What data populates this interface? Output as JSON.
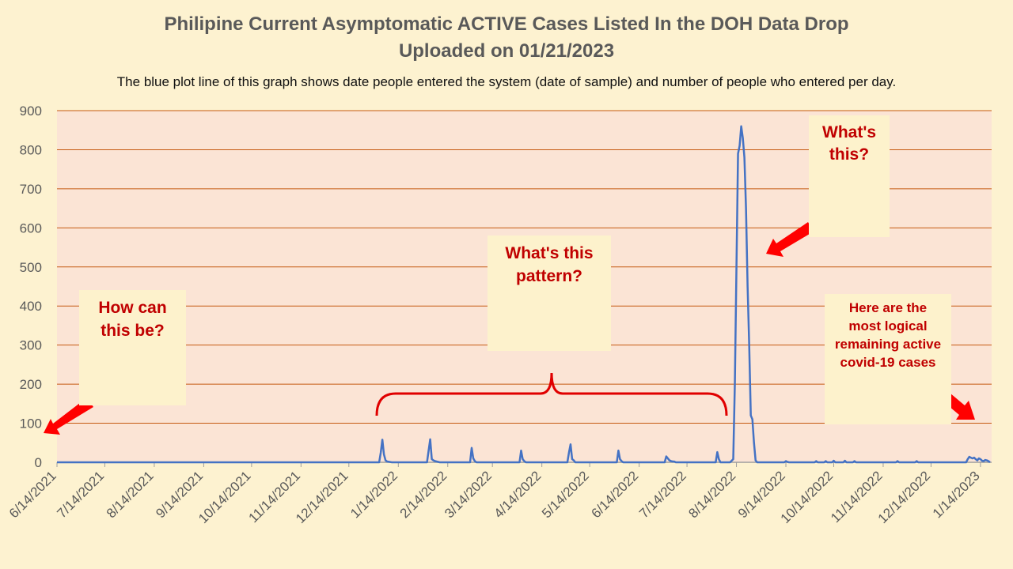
{
  "chart_data": {
    "type": "line",
    "title": "Philipine Current Asymptomatic ACTIVE Cases Listed In the DOH Data Drop",
    "title_line2": "Uploaded on 01/21/2023",
    "subtitle": "The blue plot line of this graph shows date people entered the system (date of sample) and number of people who entered per day.",
    "xlabel": "",
    "ylabel": "",
    "xlim": [
      "2021-06-14",
      "2023-01-21"
    ],
    "ylim": [
      0,
      900
    ],
    "yticks": [
      0,
      100,
      200,
      300,
      400,
      500,
      600,
      700,
      800,
      900
    ],
    "xtick_labels": [
      "6/14/2021",
      "7/14/2021",
      "8/14/2021",
      "9/14/2021",
      "10/14/2021",
      "11/14/2021",
      "12/14/2021",
      "1/14/2022",
      "2/14/2022",
      "3/14/2022",
      "4/14/2022",
      "5/14/2022",
      "6/14/2022",
      "7/14/2022",
      "8/14/2022",
      "9/14/2022",
      "10/14/2022",
      "11/14/2022",
      "12/14/2022",
      "1/14/2023"
    ],
    "xtick_dates": [
      "2021-06-14",
      "2021-07-14",
      "2021-08-14",
      "2021-09-14",
      "2021-10-14",
      "2021-11-14",
      "2021-12-14",
      "2022-01-14",
      "2022-02-14",
      "2022-03-14",
      "2022-04-14",
      "2022-05-14",
      "2022-06-14",
      "2022-07-14",
      "2022-08-14",
      "2022-09-14",
      "2022-10-14",
      "2022-11-14",
      "2022-12-14",
      "2023-01-14"
    ],
    "grid": true,
    "colors": {
      "plot_bg": "#fbe4d5",
      "page_bg": "#fdf2d0",
      "line": "#4472c4",
      "grid": "#c55a11",
      "annotation": "#c00000",
      "arrow": "#ff0000"
    },
    "series": [
      {
        "x": [
          "2021-06-14",
          "2022-01-02",
          "2022-01-03",
          "2022-01-04",
          "2022-01-05",
          "2022-01-06",
          "2022-01-07",
          "2022-01-10",
          "2022-02-01",
          "2022-02-02",
          "2022-02-03",
          "2022-02-04",
          "2022-02-05",
          "2022-02-06",
          "2022-02-09",
          "2022-02-28",
          "2022-03-01",
          "2022-03-02",
          "2022-03-03",
          "2022-03-04",
          "2022-03-31",
          "2022-04-01",
          "2022-04-02",
          "2022-04-03",
          "2022-04-04",
          "2022-04-30",
          "2022-05-01",
          "2022-05-02",
          "2022-05-03",
          "2022-05-04",
          "2022-05-05",
          "2022-05-31",
          "2022-06-01",
          "2022-06-02",
          "2022-06-03",
          "2022-06-04",
          "2022-06-30",
          "2022-07-01",
          "2022-07-02",
          "2022-07-03",
          "2022-07-04",
          "2022-07-05",
          "2022-07-06",
          "2022-07-07",
          "2022-08-01",
          "2022-08-02",
          "2022-08-03",
          "2022-08-04",
          "2022-08-10",
          "2022-08-12",
          "2022-08-13",
          "2022-08-15",
          "2022-08-16",
          "2022-08-17",
          "2022-08-18",
          "2022-08-19",
          "2022-08-20",
          "2022-08-21",
          "2022-08-22",
          "2022-08-23",
          "2022-08-24",
          "2022-08-25",
          "2022-08-26",
          "2022-08-27",
          "2022-09-13",
          "2022-09-14",
          "2022-09-15",
          "2022-09-16",
          "2022-10-02",
          "2022-10-03",
          "2022-10-04",
          "2022-10-08",
          "2022-10-09",
          "2022-10-10",
          "2022-10-13",
          "2022-10-14",
          "2022-10-15",
          "2022-10-20",
          "2022-10-21",
          "2022-10-22",
          "2022-10-26",
          "2022-10-27",
          "2022-10-28",
          "2022-11-22",
          "2022-11-23",
          "2022-11-24",
          "2022-12-04",
          "2022-12-05",
          "2022-12-06",
          "2023-01-05",
          "2023-01-06",
          "2023-01-07",
          "2023-01-08",
          "2023-01-09",
          "2023-01-10",
          "2023-01-11",
          "2023-01-12",
          "2023-01-13",
          "2023-01-14",
          "2023-01-15",
          "2023-01-16",
          "2023-01-17",
          "2023-01-18",
          "2023-01-19",
          "2023-01-20"
        ],
        "values": [
          0,
          0,
          25,
          58,
          20,
          5,
          2,
          0,
          0,
          30,
          59,
          8,
          5,
          3,
          0,
          0,
          37,
          10,
          3,
          0,
          0,
          30,
          8,
          3,
          0,
          0,
          25,
          46,
          8,
          5,
          0,
          0,
          30,
          8,
          3,
          0,
          0,
          15,
          10,
          5,
          3,
          2,
          2,
          0,
          0,
          26,
          8,
          0,
          0,
          8,
          200,
          790,
          810,
          860,
          830,
          780,
          650,
          450,
          300,
          120,
          110,
          50,
          5,
          0,
          0,
          3,
          1,
          0,
          0,
          3,
          0,
          0,
          3,
          0,
          0,
          4,
          0,
          0,
          4,
          0,
          0,
          3,
          0,
          0,
          3,
          0,
          0,
          3,
          0,
          0,
          8,
          14,
          12,
          10,
          12,
          8,
          5,
          10,
          8,
          4,
          3,
          6,
          5,
          3,
          0
        ]
      }
    ],
    "annotations": [
      {
        "text": "How can this be?"
      },
      {
        "text": "What's this pattern?"
      },
      {
        "text": "What's this?"
      },
      {
        "text": "Here are the most logical remaining active covid-19 cases"
      }
    ]
  }
}
